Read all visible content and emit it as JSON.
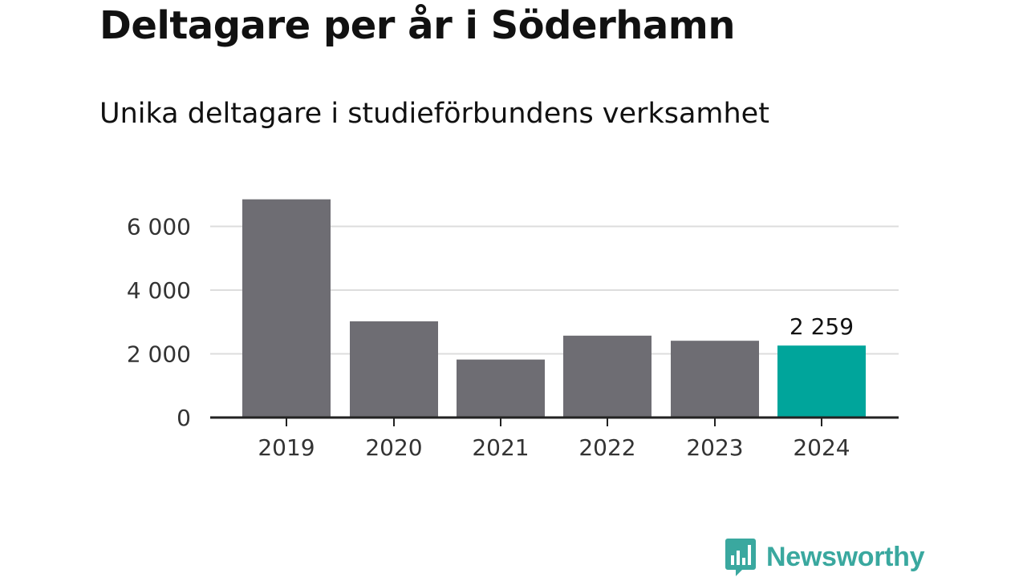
{
  "title": "Deltagare per år i Söderhamn",
  "subtitle": "Unika deltagare i studieförbundens verksamhet",
  "brand": {
    "name": "Newsworthy",
    "color": "#3aa89f",
    "logo_icon": "bar-chart-speech-bubble-icon"
  },
  "colors": {
    "bar": "#6e6d73",
    "highlight": "#00a59b",
    "grid": "#dddddd",
    "axis": "#222222"
  },
  "chart_data": {
    "type": "bar",
    "title": "Deltagare per år i Söderhamn",
    "subtitle": "Unika deltagare i studieförbundens verksamhet",
    "xlabel": "",
    "ylabel": "",
    "categories": [
      "2019",
      "2020",
      "2021",
      "2022",
      "2023",
      "2024"
    ],
    "values": [
      6850,
      3020,
      1820,
      2570,
      2410,
      2259
    ],
    "highlight_index": 5,
    "data_labels": [
      {
        "index": 5,
        "text": "2 259"
      }
    ],
    "ylim": [
      0,
      6900
    ],
    "yticks": [
      0,
      2000,
      4000,
      6000
    ],
    "ytick_labels": [
      "0",
      "2 000",
      "4 000",
      "6 000"
    ],
    "grid": true,
    "legend": "none"
  }
}
